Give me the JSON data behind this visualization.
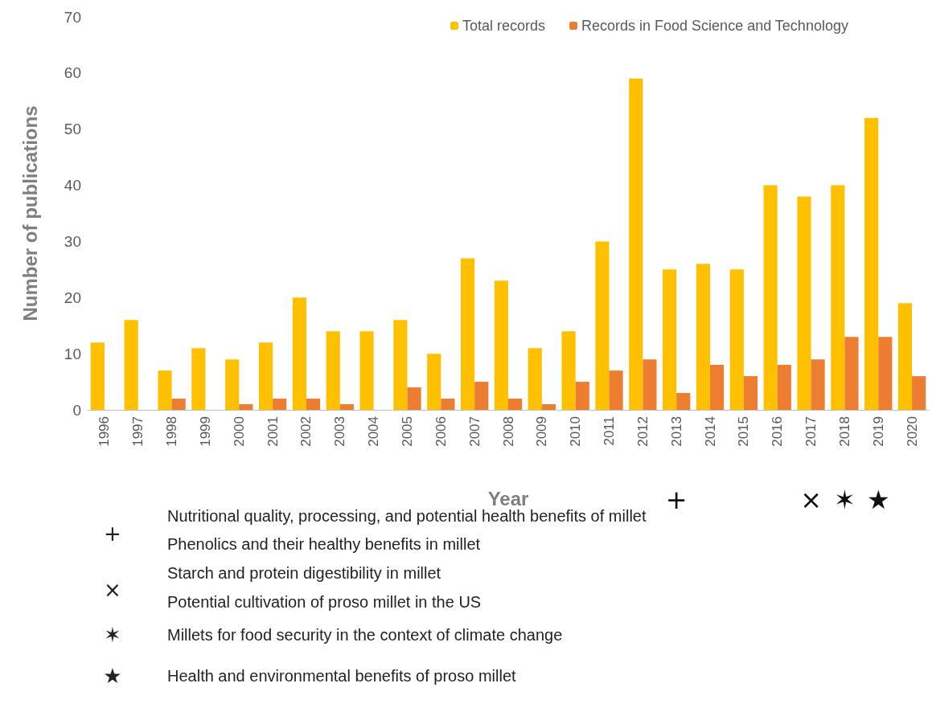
{
  "chart_data": {
    "type": "bar",
    "xlabel": "Year",
    "ylabel": "Number of publications",
    "categories": [
      "1996",
      "1997",
      "1998",
      "1999",
      "2000",
      "2001",
      "2002",
      "2003",
      "2004",
      "2005",
      "2006",
      "2007",
      "2008",
      "2009",
      "2010",
      "2011",
      "2012",
      "2013",
      "2014",
      "2015",
      "2016",
      "2017",
      "2018",
      "2019",
      "2020"
    ],
    "series": [
      {
        "name": "Total records",
        "color": "#ffc000",
        "values": [
          12,
          16,
          7,
          11,
          9,
          12,
          20,
          14,
          14,
          16,
          10,
          27,
          23,
          11,
          14,
          30,
          59,
          25,
          26,
          25,
          40,
          38,
          40,
          52,
          19
        ]
      },
      {
        "name": "Records in Food Science and Technology",
        "color": "#ed7d31",
        "values": [
          0,
          0,
          2,
          0,
          1,
          2,
          2,
          1,
          0,
          4,
          2,
          5,
          2,
          1,
          5,
          7,
          9,
          3,
          8,
          6,
          8,
          9,
          13,
          13,
          6
        ]
      }
    ],
    "ylim": [
      0,
      70
    ],
    "yticks": [
      0,
      10,
      20,
      30,
      40,
      50,
      60,
      70
    ],
    "grid": false,
    "legend": "top",
    "annotations": [
      "+",
      "×",
      "✶",
      "★",
      "+",
      "Nutritional quality, processing, and potential health benefits of millet",
      "Phenolics and their healthy benefits in millet",
      "×",
      "Starch and protein digestibility in millet",
      "Potential cultivation of proso millet in the US",
      "✶",
      "Millets for food security in the context of climate change",
      "★",
      "Health and environmental benefits of proso millet"
    ]
  }
}
